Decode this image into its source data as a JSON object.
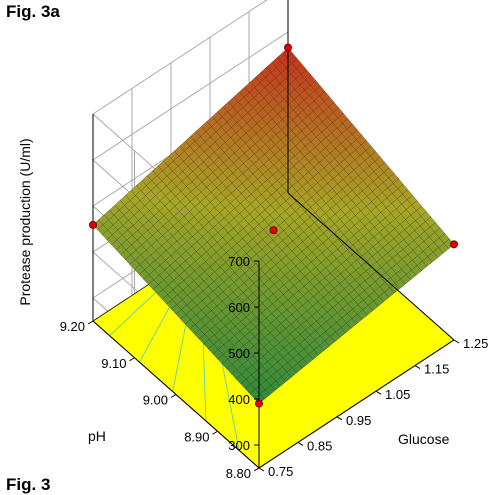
{
  "figure_label": "Fig. 3a",
  "figure_label_bottom": "Fig. 3",
  "colors": {
    "high": "#c8301c",
    "mid": "#a7a624",
    "low": "#2f8a3c",
    "floor": "#ffff00",
    "contour": "#66c9b0",
    "point": "#e00000"
  },
  "chart_data": {
    "type": "surface3d",
    "title": "",
    "zlabel": "Protease production (U/ml)",
    "xlabel": "Glucose",
    "ylabel": "pH",
    "x_ticks": [
      "0.75",
      "0.85",
      "0.95",
      "1.05",
      "1.15",
      "1.25"
    ],
    "y_ticks": [
      "8.80",
      "8.90",
      "9.00",
      "9.10",
      "9.20"
    ],
    "z_ticks": [
      "300",
      "400",
      "500",
      "600",
      "700"
    ],
    "xlim": [
      0.75,
      1.25
    ],
    "ylim": [
      8.8,
      9.2
    ],
    "zlim": [
      250,
      700
    ],
    "surface_corners": [
      {
        "glucose": 0.75,
        "ph": 8.8,
        "protease": 390
      },
      {
        "glucose": 1.25,
        "ph": 8.8,
        "protease": 458
      },
      {
        "glucose": 0.75,
        "ph": 9.2,
        "protease": 459
      },
      {
        "glucose": 1.25,
        "ph": 9.2,
        "protease": 566
      }
    ],
    "design_points": [
      {
        "glucose": 0.75,
        "ph": 8.8,
        "protease": 390
      },
      {
        "glucose": 1.25,
        "ph": 8.8,
        "protease": 458
      },
      {
        "glucose": 0.75,
        "ph": 9.2,
        "protease": 459
      },
      {
        "glucose": 1.25,
        "ph": 9.2,
        "protease": 566
      },
      {
        "glucose": 1.0,
        "ph": 9.0,
        "protease": 468
      }
    ],
    "floor_contours": true,
    "grid": true
  }
}
